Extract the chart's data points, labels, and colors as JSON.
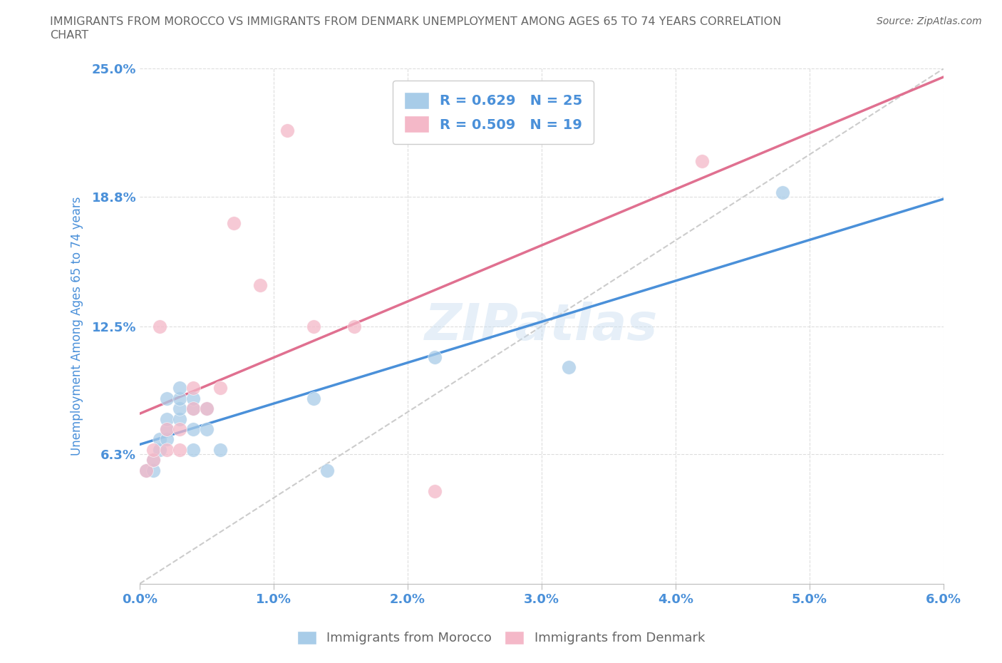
{
  "title": "IMMIGRANTS FROM MOROCCO VS IMMIGRANTS FROM DENMARK UNEMPLOYMENT AMONG AGES 65 TO 74 YEARS CORRELATION\nCHART",
  "source_text": "Source: ZipAtlas.com",
  "ylabel": "Unemployment Among Ages 65 to 74 years",
  "xlim": [
    0.0,
    0.06
  ],
  "ylim": [
    0.0,
    0.25
  ],
  "yticks": [
    0.063,
    0.125,
    0.188,
    0.25
  ],
  "ytick_labels": [
    "6.3%",
    "12.5%",
    "18.8%",
    "25.0%"
  ],
  "xticks": [
    0.0,
    0.01,
    0.02,
    0.03,
    0.04,
    0.05,
    0.06
  ],
  "xtick_labels": [
    "0.0%",
    "1.0%",
    "2.0%",
    "3.0%",
    "4.0%",
    "5.0%",
    "6.0%"
  ],
  "morocco_color": "#a8cce8",
  "denmark_color": "#f4b8c8",
  "morocco_label": "Immigrants from Morocco",
  "denmark_label": "Immigrants from Denmark",
  "morocco_R": 0.629,
  "morocco_N": 25,
  "denmark_R": 0.509,
  "denmark_N": 19,
  "watermark": "ZIPatlas",
  "morocco_x": [
    0.0005,
    0.001,
    0.001,
    0.0015,
    0.0015,
    0.002,
    0.002,
    0.002,
    0.002,
    0.003,
    0.003,
    0.003,
    0.003,
    0.004,
    0.004,
    0.004,
    0.004,
    0.005,
    0.005,
    0.006,
    0.013,
    0.014,
    0.022,
    0.032,
    0.048
  ],
  "morocco_y": [
    0.055,
    0.055,
    0.06,
    0.065,
    0.07,
    0.07,
    0.075,
    0.08,
    0.09,
    0.08,
    0.085,
    0.09,
    0.095,
    0.065,
    0.075,
    0.085,
    0.09,
    0.075,
    0.085,
    0.065,
    0.09,
    0.055,
    0.11,
    0.105,
    0.19
  ],
  "denmark_x": [
    0.0005,
    0.001,
    0.001,
    0.0015,
    0.002,
    0.002,
    0.003,
    0.003,
    0.004,
    0.004,
    0.005,
    0.006,
    0.007,
    0.009,
    0.011,
    0.013,
    0.016,
    0.022,
    0.042
  ],
  "denmark_y": [
    0.055,
    0.06,
    0.065,
    0.125,
    0.065,
    0.075,
    0.065,
    0.075,
    0.085,
    0.095,
    0.085,
    0.095,
    0.175,
    0.145,
    0.22,
    0.125,
    0.125,
    0.045,
    0.205
  ],
  "background_color": "#ffffff",
  "grid_color": "#dddddd",
  "line_color_morocco": "#4a90d9",
  "line_color_denmark": "#e07090",
  "ref_line_color": "#cccccc",
  "title_color": "#666666",
  "tick_color": "#4a90d9",
  "axis_color": "#bbbbbb"
}
